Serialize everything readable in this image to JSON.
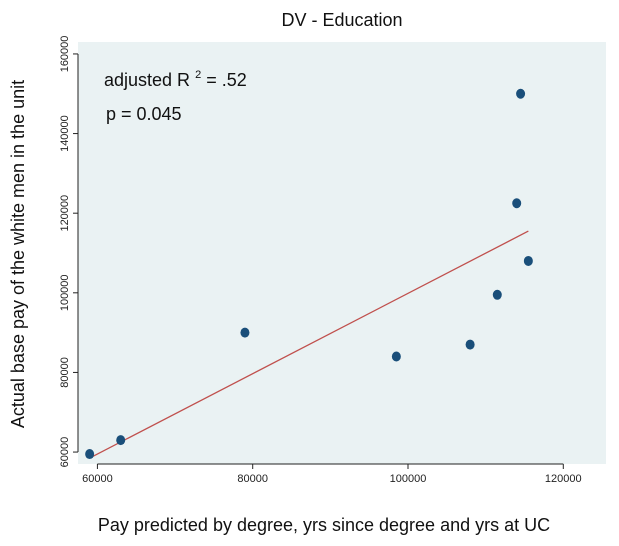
{
  "chart_data": {
    "type": "scatter",
    "title": "DV - Education",
    "xlabel": "Pay predicted by degree, yrs since degree and yrs at UC",
    "ylabel": "Actual base pay of the white men in the unit",
    "xlim": [
      57500,
      125500
    ],
    "ylim": [
      57000,
      163000
    ],
    "x_ticks": [
      60000,
      80000,
      100000,
      120000
    ],
    "y_ticks": [
      60000,
      80000,
      100000,
      120000,
      140000,
      160000
    ],
    "x_tick_labels": [
      "60000",
      "80000",
      "100000",
      "120000"
    ],
    "y_tick_labels": [
      "60000",
      "80000",
      "100000",
      "120000",
      "140000",
      "160000"
    ],
    "grid": false,
    "legend": "none",
    "colors": {
      "plot_background": "#eaf2f3",
      "marker": "#1a4f7a",
      "fit_line": "#c0504d"
    },
    "annotation": {
      "r2_prefix": "adjusted R",
      "r2_superscript": "2",
      "r2_suffix": " = .52",
      "p_text": "p = 0.045"
    },
    "points": [
      {
        "x": 59000,
        "y": 59500
      },
      {
        "x": 63000,
        "y": 63000
      },
      {
        "x": 79000,
        "y": 90000
      },
      {
        "x": 98500,
        "y": 84000
      },
      {
        "x": 108000,
        "y": 87000
      },
      {
        "x": 111500,
        "y": 99500
      },
      {
        "x": 114000,
        "y": 122500
      },
      {
        "x": 114500,
        "y": 150000
      },
      {
        "x": 115500,
        "y": 108000
      }
    ],
    "fit_line": {
      "x": [
        59000,
        115500
      ],
      "y": [
        58500,
        115500
      ]
    }
  }
}
